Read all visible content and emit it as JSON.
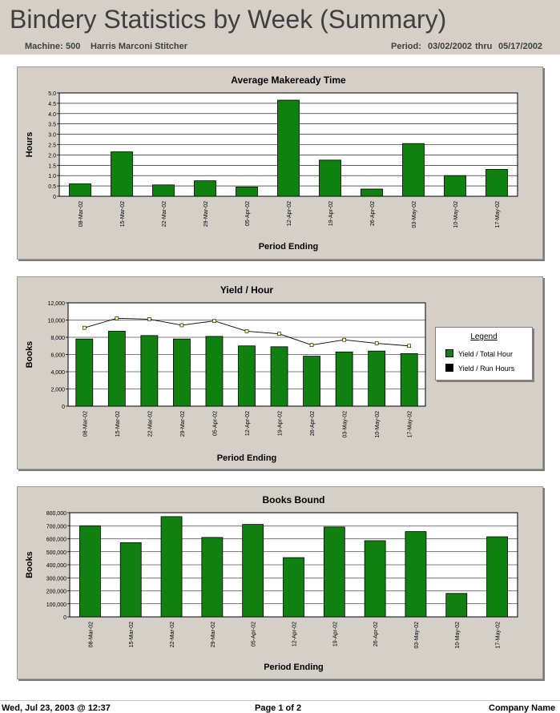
{
  "header": {
    "title": "Bindery Statistics by Week (Summary)",
    "machine_label": "Machine:",
    "machine_number": "500",
    "machine_name": "Harris Marconi Stitcher",
    "period_label": "Period:",
    "period_start": "03/02/2002",
    "period_thru": "thru",
    "period_end": "05/17/2002"
  },
  "footer": {
    "printed": "Wed, Jul 23, 2003 @ 12:37",
    "page": "Page 1 of 2",
    "company": "Company Name"
  },
  "colors": {
    "bar": "#108010",
    "background": "#d4d0c8",
    "line": "#000000",
    "marker": "#ffff99"
  },
  "legend": {
    "title": "Legend",
    "items": [
      {
        "label": "Yield / Total Hour",
        "color": "#108010"
      },
      {
        "label": "Yield / Run Hours",
        "color": "#000000"
      }
    ]
  },
  "chart_data": [
    {
      "type": "bar",
      "title": "Average Makeready Time",
      "xlabel": "Period Ending",
      "ylabel": "Hours",
      "categories": [
        "08-Mar-02",
        "15-Mar-02",
        "22-Mar-02",
        "29-Mar-02",
        "05-Apr-02",
        "12-Apr-02",
        "19-Apr-02",
        "26-Apr-02",
        "03-May-02",
        "10-May-02",
        "17-May-02"
      ],
      "values": [
        0.6,
        2.15,
        0.55,
        0.75,
        0.45,
        4.65,
        1.75,
        0.35,
        2.55,
        1.0,
        1.3
      ],
      "ylim": [
        0,
        5
      ],
      "yticks": [
        "0",
        "0.5",
        "1.0",
        "1.5",
        "2.0",
        "2.5",
        "3.0",
        "3.5",
        "4.0",
        "4.5",
        "5.0"
      ],
      "grid": true
    },
    {
      "type": "bar",
      "title": "Yield / Hour",
      "xlabel": "Period Ending",
      "ylabel": "Books",
      "categories": [
        "08-Mar-02",
        "15-Mar-02",
        "22-Mar-02",
        "29-Mar-02",
        "05-Apr-02",
        "12-Apr-02",
        "19-Apr-02",
        "26-Apr-02",
        "03-May-02",
        "10-May-02",
        "17-May-02"
      ],
      "series": [
        {
          "name": "Yield / Total Hour",
          "type": "bar",
          "values": [
            7800,
            8700,
            8200,
            7800,
            8100,
            7000,
            6900,
            5800,
            6300,
            6400,
            6100
          ]
        },
        {
          "name": "Yield / Run Hours",
          "type": "line",
          "values": [
            9100,
            10200,
            10100,
            9400,
            9900,
            8700,
            8400,
            7100,
            7700,
            7300,
            7000
          ]
        }
      ],
      "ylim": [
        0,
        12000
      ],
      "yticks": [
        "0",
        "2,000",
        "4,000",
        "6,000",
        "8,000",
        "10,000",
        "12,000"
      ],
      "grid": true,
      "legend_position": "right"
    },
    {
      "type": "bar",
      "title": "Books Bound",
      "xlabel": "Period Ending",
      "ylabel": "Books",
      "categories": [
        "08-Mar-02",
        "15-Mar-02",
        "22-Mar-02",
        "29-Mar-02",
        "05-Apr-02",
        "12-Apr-02",
        "19-Apr-02",
        "26-Apr-02",
        "03-May-02",
        "10-May-02",
        "17-May-02"
      ],
      "values": [
        700000,
        570000,
        770000,
        610000,
        710000,
        455000,
        690000,
        585000,
        655000,
        180000,
        615000
      ],
      "ylim": [
        0,
        800000
      ],
      "yticks": [
        "0",
        "100,000",
        "200,000",
        "300,000",
        "400,000",
        "500,000",
        "600,000",
        "700,000",
        "800,000"
      ],
      "grid": true
    }
  ]
}
